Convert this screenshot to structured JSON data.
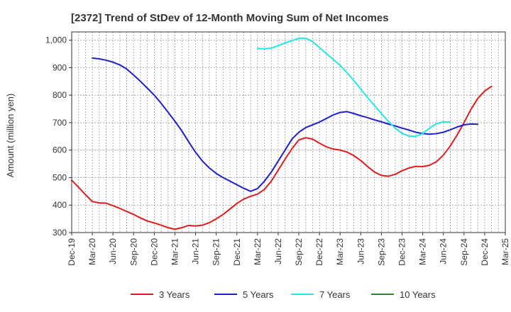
{
  "chart_data": {
    "type": "line",
    "title": "[2372]  Trend of StDev of 12-Month Moving Sum of Net Incomes",
    "ylabel": "Amount (million yen)",
    "xlabel": "",
    "ylim": [
      300,
      1030
    ],
    "yticks": [
      300,
      400,
      500,
      600,
      700,
      800,
      900,
      1000
    ],
    "ytick_labels": [
      "300",
      "400",
      "500",
      "600",
      "700",
      "800",
      "900",
      "1,000"
    ],
    "xticks": [
      "Dec-19",
      "Mar-20",
      "Jun-20",
      "Sep-20",
      "Dec-20",
      "Mar-21",
      "Jun-21",
      "Sep-21",
      "Dec-21",
      "Mar-22",
      "Jun-22",
      "Sep-22",
      "Dec-22",
      "Mar-23",
      "Jun-23",
      "Sep-23",
      "Dec-23",
      "Mar-24",
      "Jun-24",
      "Sep-24",
      "Dec-24",
      "Mar-25"
    ],
    "grid": true,
    "legend_position": "bottom",
    "series": [
      {
        "name": "3 Years",
        "color": "#e31a1c",
        "start_index": 0,
        "values": [
          490,
          465,
          438,
          413,
          408,
          407,
          398,
          388,
          377,
          366,
          353,
          342,
          335,
          327,
          318,
          312,
          318,
          326,
          324,
          327,
          336,
          350,
          366,
          386,
          406,
          422,
          432,
          440,
          457,
          487,
          527,
          567,
          605,
          637,
          645,
          640,
          625,
          612,
          604,
          600,
          593,
          580,
          562,
          540,
          520,
          508,
          505,
          512,
          525,
          535,
          541,
          540,
          545,
          558,
          582,
          615,
          655,
          700,
          748,
          788,
          815,
          832
        ]
      },
      {
        "name": "5 Years",
        "color": "#1f1fcc",
        "start_index": 3,
        "values": [
          935,
          932,
          927,
          920,
          910,
          895,
          873,
          850,
          825,
          800,
          770,
          738,
          705,
          670,
          630,
          592,
          560,
          535,
          515,
          500,
          487,
          474,
          461,
          450,
          460,
          487,
          520,
          560,
          600,
          640,
          665,
          682,
          692,
          702,
          715,
          728,
          737,
          740,
          733,
          725,
          718,
          710,
          703,
          695,
          688,
          680,
          673,
          665,
          660,
          658,
          660,
          665,
          674,
          684,
          692,
          695,
          694
        ]
      },
      {
        "name": "7 Years",
        "color": "#22e8e8",
        "start_index": 27,
        "values": [
          970,
          968,
          971,
          980,
          990,
          998,
          1007,
          1007,
          995,
          973,
          951,
          930,
          908,
          882,
          853,
          822,
          791,
          762,
          733,
          705,
          680,
          661,
          651,
          650,
          660,
          680,
          696,
          703,
          702
        ]
      },
      {
        "name": "10 Years",
        "color": "#228b22",
        "start_index": 0,
        "values": []
      }
    ]
  }
}
